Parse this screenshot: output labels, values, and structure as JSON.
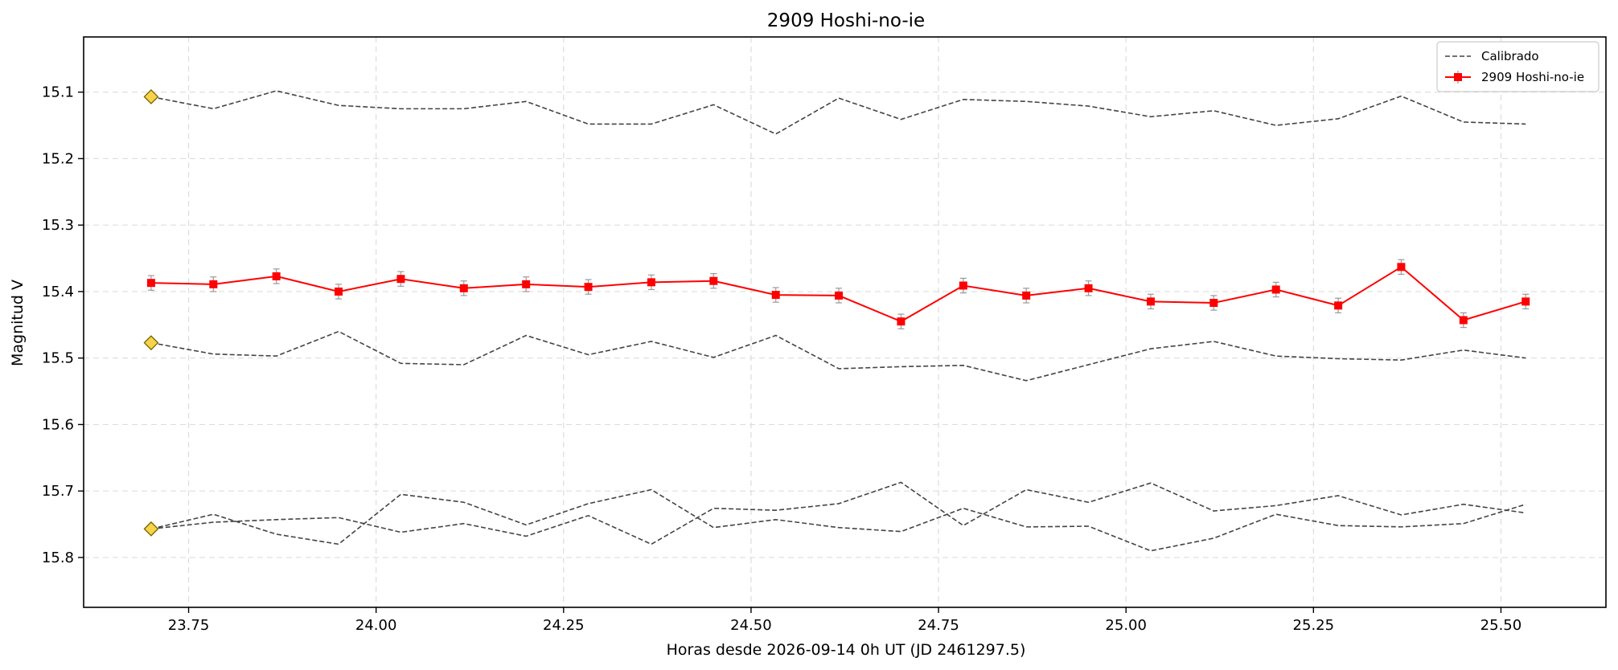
{
  "chart_data": {
    "type": "line",
    "title": "2909 Hoshi-no-ie",
    "xlabel": "Horas desde 2026-09-14 0h UT (JD 2461297.5)",
    "ylabel": "Magnitud V",
    "xlim": [
      23.61,
      25.64
    ],
    "ylim": [
      15.875,
      15.017
    ],
    "y_inverted": true,
    "grid": true,
    "legend_position": "upper-right",
    "x_ticks": [
      23.75,
      24.0,
      24.25,
      24.5,
      24.75,
      25.0,
      25.25,
      25.5
    ],
    "x_tick_labels": [
      "23.75",
      "24.00",
      "24.25",
      "24.50",
      "24.75",
      "25.00",
      "25.25",
      "25.50"
    ],
    "y_ticks": [
      15.1,
      15.2,
      15.3,
      15.4,
      15.5,
      15.6,
      15.7,
      15.8
    ],
    "y_tick_labels": [
      "15.1",
      "15.2",
      "15.3",
      "15.4",
      "15.5",
      "15.6",
      "15.7",
      "15.8"
    ],
    "x": [
      23.7,
      23.783,
      23.867,
      23.95,
      24.033,
      24.117,
      24.2,
      24.283,
      24.367,
      24.45,
      24.533,
      24.617,
      24.7,
      24.783,
      24.867,
      24.95,
      25.033,
      25.117,
      25.2,
      25.283,
      25.367,
      25.45,
      25.533
    ],
    "colors": {
      "target": "#ff0000",
      "calibration": "#444444",
      "marker_fill": "#f5d44a",
      "marker_edge": "#7a6000",
      "errorbar": "#999999",
      "grid": "#dddddd"
    },
    "series": [
      {
        "name": "2909 Hoshi-no-ie",
        "kind": "target",
        "values": [
          15.387,
          15.389,
          15.377,
          15.4,
          15.381,
          15.395,
          15.389,
          15.393,
          15.386,
          15.384,
          15.405,
          15.406,
          15.445,
          15.391,
          15.406,
          15.395,
          15.415,
          15.417,
          15.397,
          15.421,
          15.363,
          15.443,
          15.415
        ],
        "error": 0.011
      },
      {
        "name": "Calibrado",
        "kind": "calibration",
        "values": [
          15.107,
          15.125,
          15.098,
          15.12,
          15.125,
          15.125,
          15.114,
          15.148,
          15.148,
          15.119,
          15.163,
          15.109,
          15.141,
          15.111,
          15.114,
          15.121,
          15.137,
          15.128,
          15.15,
          15.14,
          15.106,
          15.145,
          15.148
        ]
      },
      {
        "kind": "calibration",
        "values": [
          15.477,
          15.494,
          15.497,
          15.46,
          15.508,
          15.51,
          15.466,
          15.495,
          15.475,
          15.499,
          15.466,
          15.516,
          15.513,
          15.511,
          15.534,
          15.51,
          15.486,
          15.475,
          15.497,
          15.501,
          15.503,
          15.488,
          15.5
        ]
      },
      {
        "kind": "calibration",
        "values": [
          15.757,
          15.747,
          15.743,
          15.74,
          15.762,
          15.749,
          15.768,
          15.737,
          15.78,
          15.726,
          15.729,
          15.719,
          15.687,
          15.752,
          15.698,
          15.717,
          15.688,
          15.73,
          15.722,
          15.707,
          15.736,
          15.72,
          15.733
        ]
      },
      {
        "kind": "calibration",
        "values": [
          15.757,
          15.735,
          15.765,
          15.78,
          15.705,
          15.717,
          15.751,
          15.719,
          15.698,
          15.755,
          15.743,
          15.755,
          15.761,
          15.726,
          15.754,
          15.753,
          15.79,
          15.771,
          15.735,
          15.752,
          15.754,
          15.749,
          15.72
        ]
      }
    ],
    "reference_markers": [
      {
        "x": 23.7,
        "y": 15.107
      },
      {
        "x": 23.7,
        "y": 15.477
      },
      {
        "x": 23.7,
        "y": 15.757
      }
    ]
  }
}
